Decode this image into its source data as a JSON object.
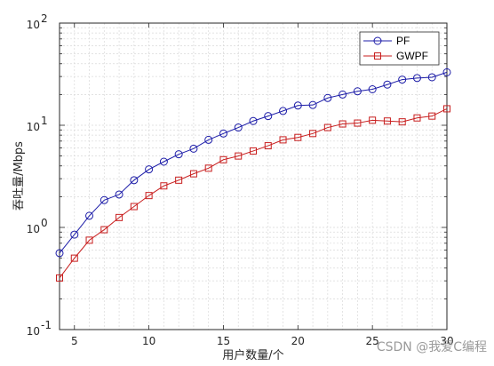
{
  "chart_data": {
    "type": "line",
    "title": "",
    "xlabel": "用户数量/个",
    "ylabel": "吞吐量/Mbps",
    "xlim": [
      4,
      30
    ],
    "ylim": [
      0.1,
      100
    ],
    "yscale": "log",
    "grid": true,
    "legend_position": "top-right",
    "x_ticks": [
      {
        "v": 5,
        "label": "5"
      },
      {
        "v": 10,
        "label": "10"
      },
      {
        "v": 15,
        "label": "15"
      },
      {
        "v": 20,
        "label": "20"
      },
      {
        "v": 25,
        "label": "25"
      },
      {
        "v": 30,
        "label": "30"
      }
    ],
    "y_ticks": [
      {
        "v": 0.1,
        "base": "10",
        "exp": "-1"
      },
      {
        "v": 1,
        "base": "10",
        "exp": "0"
      },
      {
        "v": 10,
        "base": "10",
        "exp": "1"
      },
      {
        "v": 100,
        "base": "10",
        "exp": "2"
      }
    ],
    "x": [
      4,
      5,
      6,
      7,
      8,
      9,
      10,
      11,
      12,
      13,
      14,
      15,
      16,
      17,
      18,
      19,
      20,
      21,
      22,
      23,
      24,
      25,
      26,
      27,
      28,
      29,
      30
    ],
    "series": [
      {
        "name": "PF",
        "color": "#1c1ca8",
        "marker": "circle",
        "values": [
          0.56,
          0.85,
          1.3,
          1.85,
          2.1,
          2.9,
          3.7,
          4.4,
          5.2,
          5.9,
          7.2,
          8.3,
          9.5,
          11.0,
          12.3,
          13.8,
          15.6,
          15.8,
          18.5,
          20.0,
          21.5,
          22.5,
          25.0,
          28.0,
          29.0,
          29.5,
          33.0
        ]
      },
      {
        "name": "GWPF",
        "color": "#c81e1e",
        "marker": "square",
        "values": [
          0.32,
          0.5,
          0.75,
          0.95,
          1.25,
          1.6,
          2.05,
          2.55,
          2.9,
          3.35,
          3.8,
          4.6,
          5.0,
          5.6,
          6.3,
          7.2,
          7.6,
          8.3,
          9.5,
          10.3,
          10.5,
          11.2,
          11.0,
          10.8,
          11.8,
          12.3,
          14.5
        ]
      }
    ]
  },
  "watermark": "CSDN @我爱C编程"
}
